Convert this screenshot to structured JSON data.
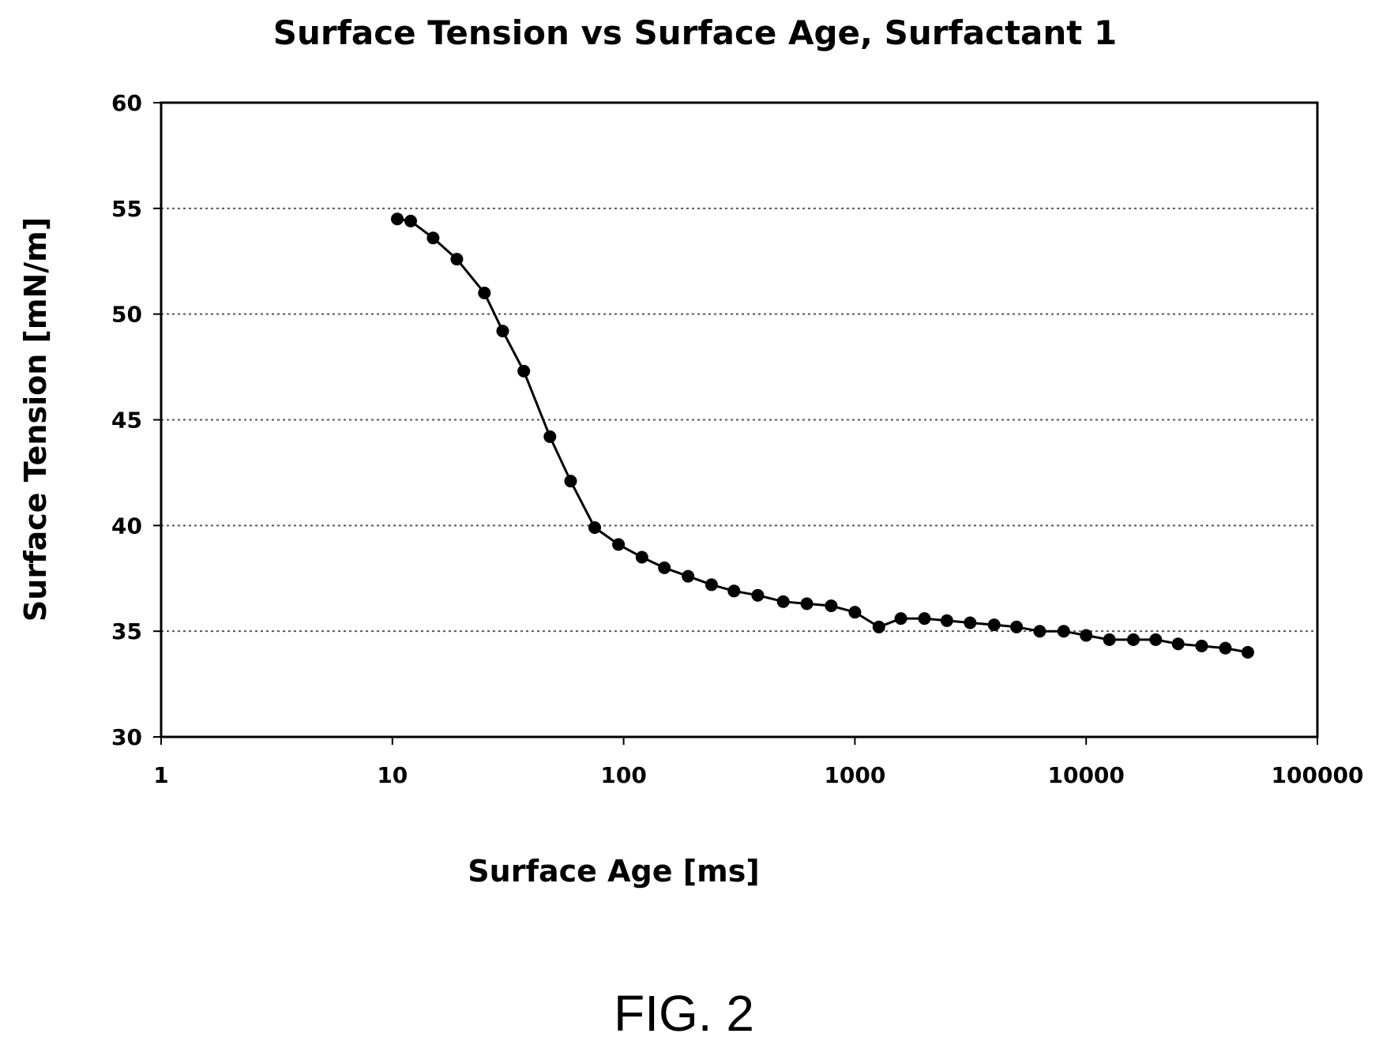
{
  "figure_caption": "FIG. 2",
  "chart_data": {
    "type": "scatter",
    "title": "Surface Tension vs Surface Age, Surfactant 1",
    "xlabel": "Surface Age [ms]",
    "ylabel": "Surface Tension [mN/m]",
    "x_scale": "log",
    "xlim": [
      1,
      100000
    ],
    "ylim": [
      30,
      60
    ],
    "x_ticks": [
      "1",
      "10",
      "100",
      "1000",
      "10000",
      "100000"
    ],
    "y_ticks": [
      "30",
      "35",
      "40",
      "45",
      "50",
      "55",
      "60"
    ],
    "grid": "horizontal dotted",
    "legend": "none",
    "marker_color": "#000000",
    "line_color": "#000000",
    "series": [
      {
        "x": [
          10.5,
          12,
          15,
          19,
          25,
          30,
          37,
          48,
          59,
          75,
          95,
          120,
          150,
          190,
          240,
          300,
          380,
          490,
          620,
          790,
          1000,
          1270,
          1580,
          2000,
          2500,
          3150,
          4000,
          5000,
          6300,
          8000,
          10000,
          12600,
          16000,
          20000,
          25000,
          31600,
          40000,
          50000
        ],
        "y": [
          54.5,
          54.4,
          53.6,
          52.6,
          51.0,
          49.2,
          47.3,
          44.2,
          42.1,
          39.9,
          39.1,
          38.5,
          38.0,
          37.6,
          37.2,
          36.9,
          36.7,
          36.4,
          36.3,
          36.2,
          35.9,
          35.2,
          35.6,
          35.6,
          35.5,
          35.4,
          35.3,
          35.2,
          35.0,
          35.0,
          34.8,
          34.6,
          34.6,
          34.6,
          34.4,
          34.3,
          34.2,
          34.0
        ]
      }
    ]
  }
}
